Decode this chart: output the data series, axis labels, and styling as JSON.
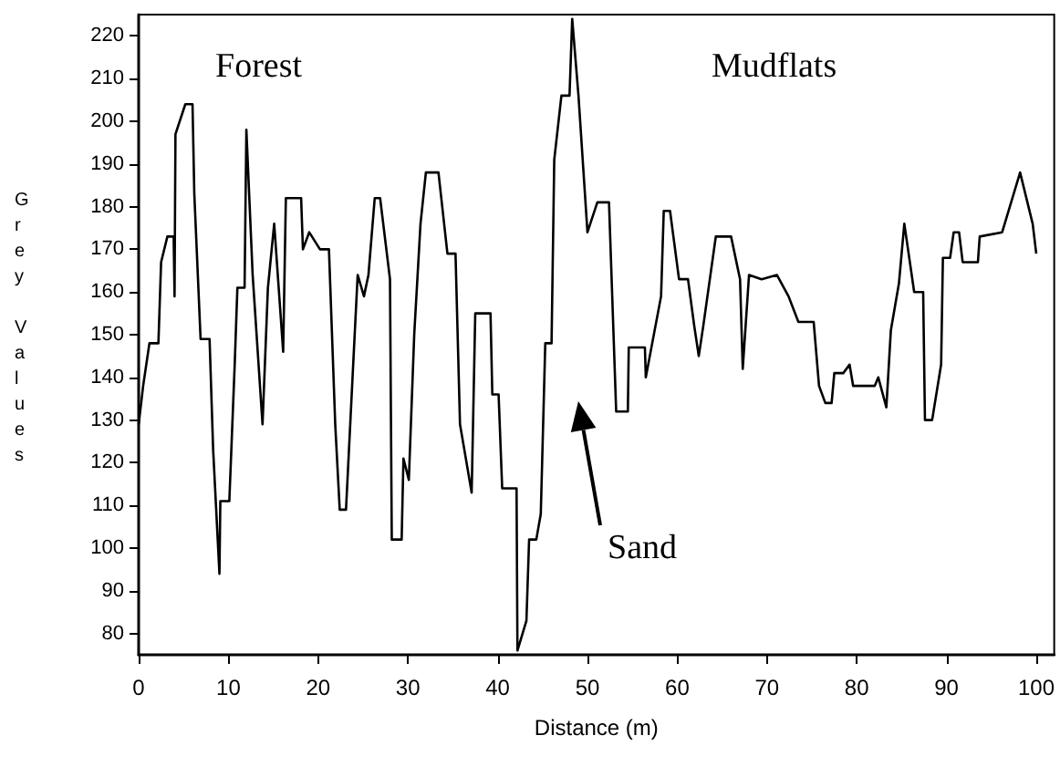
{
  "chart_data": {
    "type": "line",
    "xlabel": "Distance (m)",
    "ylabel": "Grey Values",
    "x": [
      0,
      0.5,
      1.2,
      2.2,
      2.5,
      3.2,
      3.9,
      4.0,
      4.1,
      5.2,
      6.0,
      6.2,
      6.9,
      7.9,
      8.3,
      9.0,
      9.1,
      10.1,
      10.7,
      11.0,
      11.8,
      12.0,
      12.7,
      13.8,
      14.4,
      15.1,
      16.1,
      16.4,
      18.1,
      18.3,
      19.0,
      20.2,
      21.2,
      21.9,
      22.4,
      23.1,
      23.9,
      24.4,
      25.1,
      25.6,
      26.3,
      26.9,
      28.0,
      28.2,
      29.3,
      29.5,
      30.1,
      30.7,
      31.4,
      32.0,
      33.4,
      34.4,
      35.3,
      35.8,
      37.1,
      37.5,
      39.2,
      39.4,
      40.1,
      40.5,
      42.1,
      42.2,
      43.2,
      43.5,
      44.3,
      44.8,
      45.3,
      46.0,
      46.3,
      47.1,
      48.0,
      48.3,
      49.0,
      50.0,
      51.1,
      52.4,
      53.2,
      54.5,
      54.6,
      56.4,
      56.5,
      58.2,
      58.5,
      59.2,
      60.2,
      61.2,
      61.9,
      62.4,
      62.9,
      64.3,
      66.0,
      67.0,
      67.3,
      68.0,
      69.4,
      71.1,
      72.4,
      73.5,
      75.2,
      75.8,
      76.5,
      77.2,
      77.5,
      78.5,
      79.2,
      79.6,
      82.0,
      82.4,
      83.3,
      83.8,
      84.7,
      85.3,
      86.4,
      87.4,
      87.6,
      88.4,
      89.4,
      89.6,
      90.4,
      90.8,
      91.4,
      91.8,
      93.5,
      93.7,
      96.2,
      98.2,
      99.6,
      100
    ],
    "series": [
      {
        "color": "#000000",
        "values": [
          129,
          138,
          148,
          148,
          167,
          173,
          173,
          159,
          197,
          204,
          204,
          183,
          149,
          149,
          123,
          94,
          111,
          111,
          143,
          161,
          161,
          198,
          164,
          129,
          161,
          176,
          146,
          182,
          182,
          170,
          174,
          170,
          170,
          129,
          109,
          109,
          143,
          164,
          159,
          164,
          182,
          182,
          163,
          102,
          102,
          121,
          116,
          150,
          176,
          188,
          188,
          169,
          169,
          129,
          113,
          155,
          155,
          136,
          136,
          114,
          114,
          76,
          83,
          102,
          102,
          108,
          148,
          148,
          191,
          206,
          206,
          224,
          206,
          174,
          181,
          181,
          132,
          132,
          147,
          147,
          140,
          159,
          179,
          179,
          163,
          163,
          152,
          145,
          152,
          173,
          173,
          163,
          142,
          164,
          163,
          164,
          159,
          153,
          153,
          138,
          134,
          134,
          141,
          141,
          143,
          138,
          138,
          140,
          133,
          151,
          162,
          176,
          160,
          160,
          130,
          130,
          143,
          168,
          168,
          174,
          174,
          167,
          167,
          173,
          174,
          188,
          176,
          169
        ]
      }
    ],
    "xlim": [
      0,
      102
    ],
    "xticks": [
      0,
      10,
      20,
      30,
      40,
      50,
      60,
      70,
      80,
      90,
      100
    ],
    "ylim": [
      75,
      225
    ],
    "yticks": [
      80,
      90,
      100,
      110,
      120,
      130,
      140,
      150,
      160,
      170,
      180,
      190,
      200,
      210,
      220
    ],
    "grid": false,
    "marker": "none",
    "line_style": "solid",
    "annotations": [
      "Forest",
      "Mudflats",
      "Sand"
    ]
  }
}
